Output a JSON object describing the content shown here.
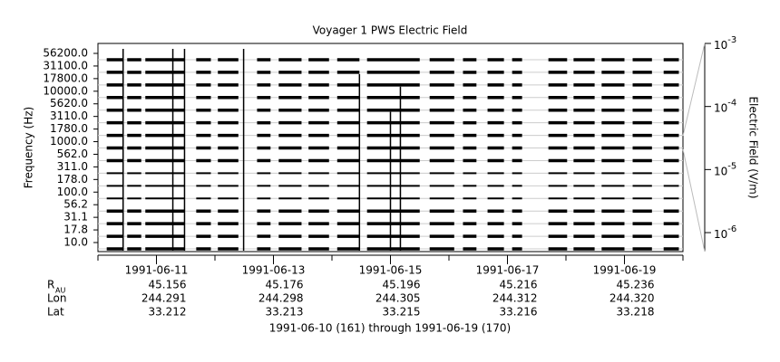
{
  "chart_data": {
    "type": "spectrogram",
    "title": "Voyager 1 PWS Electric Field",
    "y_label": "Frequency (Hz)",
    "y2_label": "Electric Field (V/m)",
    "categories": [
      "56200.0",
      "31100.0",
      "17800.0",
      "10000.0",
      "5620.0",
      "3110.0",
      "1780.0",
      "1000.0",
      "562.0",
      "311.0",
      "178.0",
      "100.0",
      "56.2",
      "31.1",
      "17.8",
      "10.0"
    ],
    "xlim": [
      0,
      10
    ],
    "xticks": [
      {
        "value": 1,
        "label": "1991-06-11"
      },
      {
        "value": 3,
        "label": "1991-06-13"
      },
      {
        "value": 5,
        "label": "1991-06-15"
      },
      {
        "value": 7,
        "label": "1991-06-17"
      },
      {
        "value": 9,
        "label": "1991-06-19"
      }
    ],
    "xminorticks": [
      0,
      2,
      4,
      6,
      8,
      10
    ],
    "y2lim": [
      5e-07,
      0.001
    ],
    "y2log": true,
    "y2ticks": [
      {
        "value": 0.001,
        "label": "10-3"
      },
      {
        "value": 0.0001,
        "label": "10-4"
      },
      {
        "value": 1e-05,
        "label": "10-5"
      },
      {
        "value": 1e-06,
        "label": "10-6"
      }
    ],
    "color": "#000000",
    "segments": [
      [
        0.15,
        0.43
      ],
      [
        0.5,
        0.74
      ],
      [
        0.81,
        1.48
      ],
      [
        1.68,
        1.93
      ],
      [
        2.05,
        2.4
      ],
      [
        2.72,
        2.95
      ],
      [
        3.09,
        3.48
      ],
      [
        3.6,
        3.95
      ],
      [
        4.09,
        4.47
      ],
      [
        4.6,
        5.5
      ],
      [
        5.67,
        6.09
      ],
      [
        6.24,
        6.47
      ],
      [
        6.66,
        6.94
      ],
      [
        7.08,
        7.25
      ],
      [
        7.7,
        8.02
      ],
      [
        8.13,
        8.49
      ],
      [
        8.61,
        9.0
      ],
      [
        9.14,
        9.47
      ],
      [
        9.67,
        9.93
      ]
    ],
    "bursts": {
      "x": [
        0.43,
        1.28,
        1.48,
        2.49,
        4.47,
        5.0,
        5.17
      ],
      "top": [
        56200,
        56200,
        56200,
        56200,
        17800,
        3110,
        10000
      ]
    },
    "ephemeris": [
      {
        "name": "R",
        "subscript": "AU",
        "values": [
          "45.156",
          "45.176",
          "45.196",
          "45.216",
          "45.236"
        ]
      },
      {
        "name": "Lon",
        "values": [
          "244.291",
          "244.298",
          "244.305",
          "244.312",
          "244.320"
        ]
      },
      {
        "name": "Lat",
        "values": [
          "33.212",
          "33.213",
          "33.215",
          "33.216",
          "33.218"
        ]
      }
    ],
    "footer": "1991-06-10 (161) through 1991-06-19 (170)"
  }
}
